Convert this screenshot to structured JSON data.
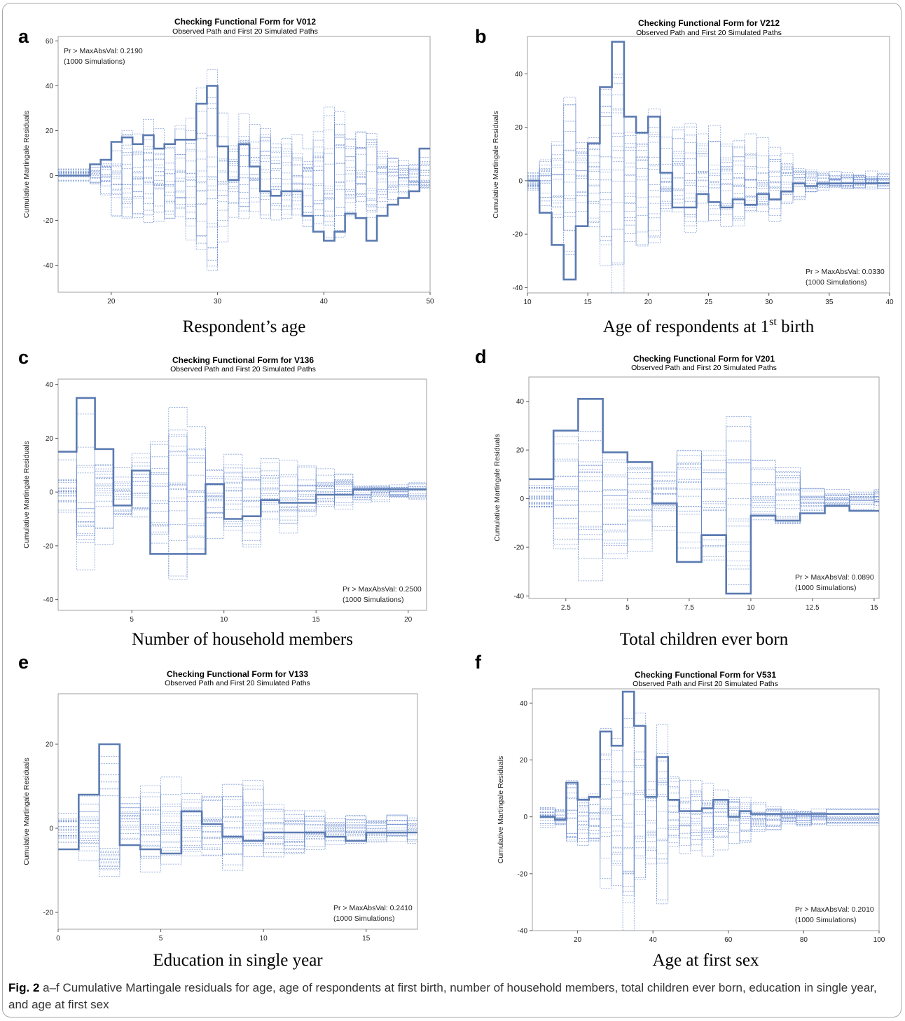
{
  "caption": {
    "label": "Fig. 2",
    "text": " a–f Cumulative Martingale residuals for age, age of respondents at first birth, number of household members, total children ever born, education in single year, and age at first sex"
  },
  "colors": {
    "observed": "#5b7bb2",
    "simulated": "#6688cc",
    "frame": "#a8a8a8",
    "axis": "#555555"
  },
  "chart_data": [
    {
      "type": "line",
      "panel_label": "a",
      "title": "Checking Functional Form for V012",
      "subtitle": "Observed Path and First 20 Simulated Paths",
      "ylabel": "Cumulative Martingale Residuals",
      "xlabel": "Respondent’s age",
      "annotation": [
        "Pr > MaxAbsVal: 0.2190",
        "(1000 Simulations)"
      ],
      "annotation_position": "top-left",
      "xlim": [
        15,
        50
      ],
      "ylim": [
        -52,
        62
      ],
      "xticks": [
        20,
        30,
        40,
        50
      ],
      "yticks": [
        -40,
        -20,
        0,
        20,
        40,
        60
      ],
      "series": [
        {
          "role": "observed",
          "x": [
            15,
            18,
            19,
            20,
            21,
            22,
            23,
            24,
            25,
            26,
            27,
            28,
            29,
            30,
            31,
            32,
            33,
            34,
            35,
            36,
            37,
            38,
            39,
            40,
            41,
            42,
            43,
            44,
            45,
            46,
            47,
            48,
            49
          ],
          "values": [
            0,
            5,
            7,
            15,
            17,
            14,
            18,
            12,
            14,
            16,
            16,
            32,
            40,
            13,
            -2,
            14,
            4,
            -7,
            -9,
            -7,
            -7,
            -18,
            -25,
            -29,
            -25,
            -17,
            -19,
            -29,
            -18,
            -13,
            -10,
            -7,
            12
          ]
        }
      ]
    },
    {
      "type": "line",
      "panel_label": "b",
      "title": "Checking Functional Form for V212",
      "subtitle": "Observed Path and First 20 Simulated Paths",
      "ylabel": "Cumulative Martingale Residuals",
      "xlabel_prefix": "Age of respondents at 1",
      "xlabel_sup": "st",
      "xlabel_suffix": " birth",
      "annotation": [
        "Pr > MaxAbsVal: 0.0330",
        "(1000 Simulations)"
      ],
      "annotation_position": "bottom-right",
      "xlim": [
        10,
        40
      ],
      "ylim": [
        -42,
        54
      ],
      "xticks": [
        10,
        15,
        20,
        25,
        30,
        35,
        40
      ],
      "yticks": [
        -40,
        -20,
        0,
        20,
        40
      ],
      "series": [
        {
          "role": "observed",
          "x": [
            10,
            11,
            12,
            13,
            14,
            15,
            16,
            17,
            18,
            19,
            20,
            21,
            22,
            23,
            24,
            25,
            26,
            27,
            28,
            29,
            30,
            31,
            32,
            33,
            34,
            35,
            36,
            37,
            38,
            39
          ],
          "values": [
            0,
            -12,
            -24,
            -37,
            -17,
            14,
            35,
            52,
            24,
            18,
            24,
            3,
            -10,
            -10,
            -5,
            -8,
            -10,
            -7,
            -9,
            -5,
            -7,
            -4,
            -1,
            -2,
            -1,
            -1,
            -1,
            -1,
            -1,
            -1
          ]
        }
      ]
    },
    {
      "type": "line",
      "panel_label": "c",
      "title": "Checking Functional Form for V136",
      "subtitle": "Observed Path and First 20 Simulated Paths",
      "ylabel": "Cumulative Martingale Residuals",
      "xlabel": "Number of household members",
      "annotation": [
        "Pr > MaxAbsVal: 0.2500",
        "(1000 Simulations)"
      ],
      "annotation_position": "bottom-right",
      "xlim": [
        1,
        21
      ],
      "ylim": [
        -44,
        42
      ],
      "xticks": [
        5,
        10,
        15,
        20
      ],
      "yticks": [
        -40,
        -20,
        0,
        20,
        40
      ],
      "series": [
        {
          "role": "observed",
          "x": [
            1,
            2,
            3,
            4,
            5,
            6,
            7,
            8,
            9,
            10,
            11,
            12,
            13,
            14,
            15,
            16,
            17,
            18,
            19,
            20,
            21
          ],
          "values": [
            15,
            35,
            16,
            -5,
            8,
            -23,
            -23,
            -23,
            3,
            -10,
            -9,
            -3,
            -4,
            -4,
            -1,
            -1,
            1,
            1,
            1,
            1,
            1
          ]
        }
      ]
    },
    {
      "type": "line",
      "panel_label": "d",
      "title": "Checking Functional Form for V201",
      "subtitle": "Observed Path and First 20 Simulated Paths",
      "ylabel": "Cumulative Martingale Residuals",
      "xlabel": "Total children ever born",
      "annotation": [
        "Pr > MaxAbsVal: 0.0890",
        "(1000 Simulations)"
      ],
      "annotation_position": "bottom-right",
      "xlim": [
        1,
        15.2
      ],
      "ylim": [
        -41,
        50
      ],
      "xticks": [
        2.5,
        5.0,
        7.5,
        10.0,
        12.5,
        15.0
      ],
      "yticks": [
        -40,
        -20,
        0,
        20,
        40
      ],
      "series": [
        {
          "role": "observed",
          "x": [
            1,
            2,
            3,
            4,
            5,
            6,
            7,
            8,
            9,
            10,
            11,
            12,
            13,
            14,
            15
          ],
          "values": [
            8,
            28,
            41,
            19,
            15,
            -2,
            -26,
            -15,
            -39,
            -7,
            -9,
            -6,
            -3,
            -5,
            -5
          ]
        }
      ]
    },
    {
      "type": "line",
      "panel_label": "e",
      "title": "Checking Functional Form for V133",
      "subtitle": "Observed Path and First 20 Simulated Paths",
      "ylabel": "Cumulative Martingale Residuals",
      "xlabel": "Education in single year",
      "annotation": [
        "Pr > MaxAbsVal: 0.2410",
        "(1000 Simulations)"
      ],
      "annotation_position": "bottom-right",
      "xlim": [
        0,
        17.5
      ],
      "ylim": [
        -24,
        32
      ],
      "xticks": [
        0,
        5,
        10,
        15
      ],
      "yticks": [
        -20,
        0,
        20
      ],
      "series": [
        {
          "role": "observed",
          "x": [
            0,
            1,
            2,
            3,
            4,
            5,
            6,
            7,
            8,
            9,
            10,
            11,
            12,
            13,
            14,
            15,
            16,
            17
          ],
          "values": [
            -5,
            8,
            20,
            -4,
            -5,
            -6,
            4,
            1,
            -2,
            -3,
            -1,
            -1,
            -1,
            -2,
            -3,
            -1,
            -1,
            -1
          ]
        }
      ]
    },
    {
      "type": "line",
      "panel_label": "f",
      "title": "Checking Functional Form for V531",
      "subtitle": "Observed Path and First 20 Simulated Paths",
      "ylabel": "Cumulative Martingale Residuals",
      "xlabel": "Age at first sex",
      "annotation": [
        "Pr > MaxAbsVal: 0.2010",
        "(1000 Simulations)"
      ],
      "annotation_position": "bottom-right",
      "xlim": [
        8,
        100
      ],
      "ylim": [
        -40,
        45
      ],
      "xticks": [
        20,
        40,
        60,
        80,
        100
      ],
      "yticks": [
        -40,
        -20,
        0,
        20,
        40
      ],
      "series": [
        {
          "role": "observed",
          "x": [
            10,
            14,
            17,
            20,
            23,
            26,
            29,
            32,
            35,
            38,
            41,
            44,
            47,
            50,
            53,
            56,
            60,
            63,
            66,
            70,
            74,
            78,
            82,
            86,
            100
          ],
          "values": [
            0,
            -1,
            12,
            6,
            7,
            30,
            25,
            44,
            32,
            7,
            21,
            6,
            2,
            2,
            3,
            6,
            0,
            2,
            1,
            1,
            1,
            1,
            1,
            1,
            1
          ]
        }
      ]
    }
  ]
}
